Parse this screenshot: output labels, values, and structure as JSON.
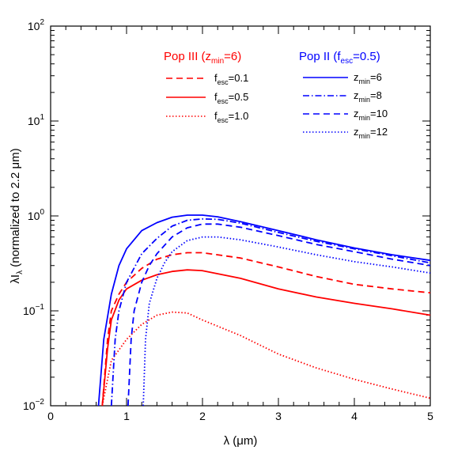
{
  "chart_data": {
    "type": "line",
    "xlabel": "λ (μm)",
    "ylabel": "λI (normalized to 2.2 μm)",
    "ylabel_main": "λI",
    "ylabel_sub": "λ",
    "ylabel_rest": " (normalized to 2.2 μm)",
    "xlabel_main": "λ (μm)",
    "xlim": [
      0,
      5
    ],
    "ylim": [
      0.01,
      100
    ],
    "yscale": "log",
    "grid": false,
    "x_ticks": [
      "0",
      "1",
      "2",
      "3",
      "4",
      "5"
    ],
    "y_ticks": [
      {
        "value": 0.01,
        "base": "10",
        "exp": "−2"
      },
      {
        "value": 0.1,
        "base": "10",
        "exp": "−1"
      },
      {
        "value": 1,
        "base": "10",
        "exp": "0"
      },
      {
        "value": 10,
        "base": "10",
        "exp": "1"
      },
      {
        "value": 100,
        "base": "10",
        "exp": "2"
      }
    ],
    "legend_groups": [
      {
        "header_main": "Pop III (z",
        "header_sub": "min",
        "header_rest": "=6)",
        "color": "#ff0000",
        "entries": [
          {
            "main": "f",
            "sub": "esc",
            "rest": "=0.1",
            "dash": "dashed"
          },
          {
            "main": "f",
            "sub": "esc",
            "rest": "=0.5",
            "dash": "solid"
          },
          {
            "main": "f",
            "sub": "esc",
            "rest": "=1.0",
            "dash": "dotted"
          }
        ]
      },
      {
        "header_main": "Pop II (f",
        "header_sub": "esc",
        "header_rest": "=0.5)",
        "color": "#0000ff",
        "entries": [
          {
            "main": "z",
            "sub": "min",
            "rest": "=6",
            "dash": "solid"
          },
          {
            "main": "z",
            "sub": "min",
            "rest": "=8",
            "dash": "dashdot"
          },
          {
            "main": "z",
            "sub": "min",
            "rest": "=10",
            "dash": "dashed"
          },
          {
            "main": "z",
            "sub": "min",
            "rest": "=12",
            "dash": "dotted"
          }
        ]
      }
    ],
    "series": [
      {
        "group": "Pop III",
        "color": "#ff0000",
        "dash": "dashed",
        "x": [
          0.68,
          0.75,
          0.8,
          0.9,
          1.0,
          1.2,
          1.4,
          1.6,
          1.8,
          2.0,
          2.5,
          3.0,
          3.5,
          4.0,
          4.5,
          5.0
        ],
        "y": [
          0.01,
          0.05,
          0.1,
          0.15,
          0.2,
          0.28,
          0.35,
          0.39,
          0.41,
          0.41,
          0.36,
          0.29,
          0.23,
          0.19,
          0.17,
          0.155
        ]
      },
      {
        "group": "Pop III",
        "color": "#ff0000",
        "dash": "solid",
        "x": [
          0.68,
          0.75,
          0.8,
          0.9,
          1.0,
          1.2,
          1.4,
          1.6,
          1.8,
          2.0,
          2.5,
          3.0,
          3.5,
          4.0,
          4.5,
          5.0
        ],
        "y": [
          0.01,
          0.04,
          0.08,
          0.13,
          0.17,
          0.21,
          0.24,
          0.26,
          0.27,
          0.265,
          0.22,
          0.17,
          0.14,
          0.12,
          0.105,
          0.09
        ]
      },
      {
        "group": "Pop III",
        "color": "#ff0000",
        "dash": "dotted",
        "x": [
          0.68,
          0.8,
          1.0,
          1.2,
          1.4,
          1.6,
          1.8,
          2.0,
          2.5,
          3.0,
          3.5,
          4.0,
          4.5,
          5.0
        ],
        "y": [
          0.01,
          0.03,
          0.05,
          0.072,
          0.09,
          0.097,
          0.095,
          0.08,
          0.055,
          0.035,
          0.025,
          0.019,
          0.015,
          0.012
        ]
      },
      {
        "group": "Pop II",
        "color": "#0000ff",
        "dash": "solid",
        "x": [
          0.63,
          0.7,
          0.8,
          0.9,
          1.0,
          1.2,
          1.4,
          1.6,
          1.8,
          2.0,
          2.2,
          2.5,
          3.0,
          3.5,
          4.0,
          4.5,
          5.0
        ],
        "y": [
          0.01,
          0.05,
          0.15,
          0.3,
          0.45,
          0.7,
          0.85,
          0.97,
          1.02,
          1.02,
          0.98,
          0.87,
          0.7,
          0.56,
          0.46,
          0.39,
          0.34
        ]
      },
      {
        "group": "Pop II",
        "color": "#0000ff",
        "dash": "dashdot",
        "x": [
          0.8,
          0.85,
          0.9,
          1.0,
          1.2,
          1.4,
          1.6,
          1.8,
          2.0,
          2.2,
          2.5,
          3.0,
          3.5,
          4.0,
          4.5,
          5.0
        ],
        "y": [
          0.01,
          0.05,
          0.1,
          0.2,
          0.4,
          0.58,
          0.78,
          0.9,
          0.93,
          0.92,
          0.84,
          0.67,
          0.54,
          0.45,
          0.38,
          0.32
        ]
      },
      {
        "group": "Pop II",
        "color": "#0000ff",
        "dash": "dashed",
        "x": [
          1.02,
          1.06,
          1.1,
          1.2,
          1.3,
          1.4,
          1.6,
          1.8,
          2.0,
          2.2,
          2.5,
          3.0,
          3.5,
          4.0,
          4.5,
          5.0
        ],
        "y": [
          0.01,
          0.05,
          0.1,
          0.2,
          0.3,
          0.4,
          0.6,
          0.75,
          0.82,
          0.82,
          0.76,
          0.62,
          0.5,
          0.42,
          0.35,
          0.3
        ]
      },
      {
        "group": "Pop II",
        "color": "#0000ff",
        "dash": "dotted",
        "x": [
          1.22,
          1.25,
          1.3,
          1.4,
          1.5,
          1.6,
          1.8,
          2.0,
          2.2,
          2.5,
          3.0,
          3.5,
          4.0,
          4.5,
          5.0
        ],
        "y": [
          0.01,
          0.05,
          0.12,
          0.22,
          0.32,
          0.42,
          0.55,
          0.6,
          0.6,
          0.56,
          0.47,
          0.39,
          0.33,
          0.29,
          0.25
        ]
      }
    ]
  }
}
